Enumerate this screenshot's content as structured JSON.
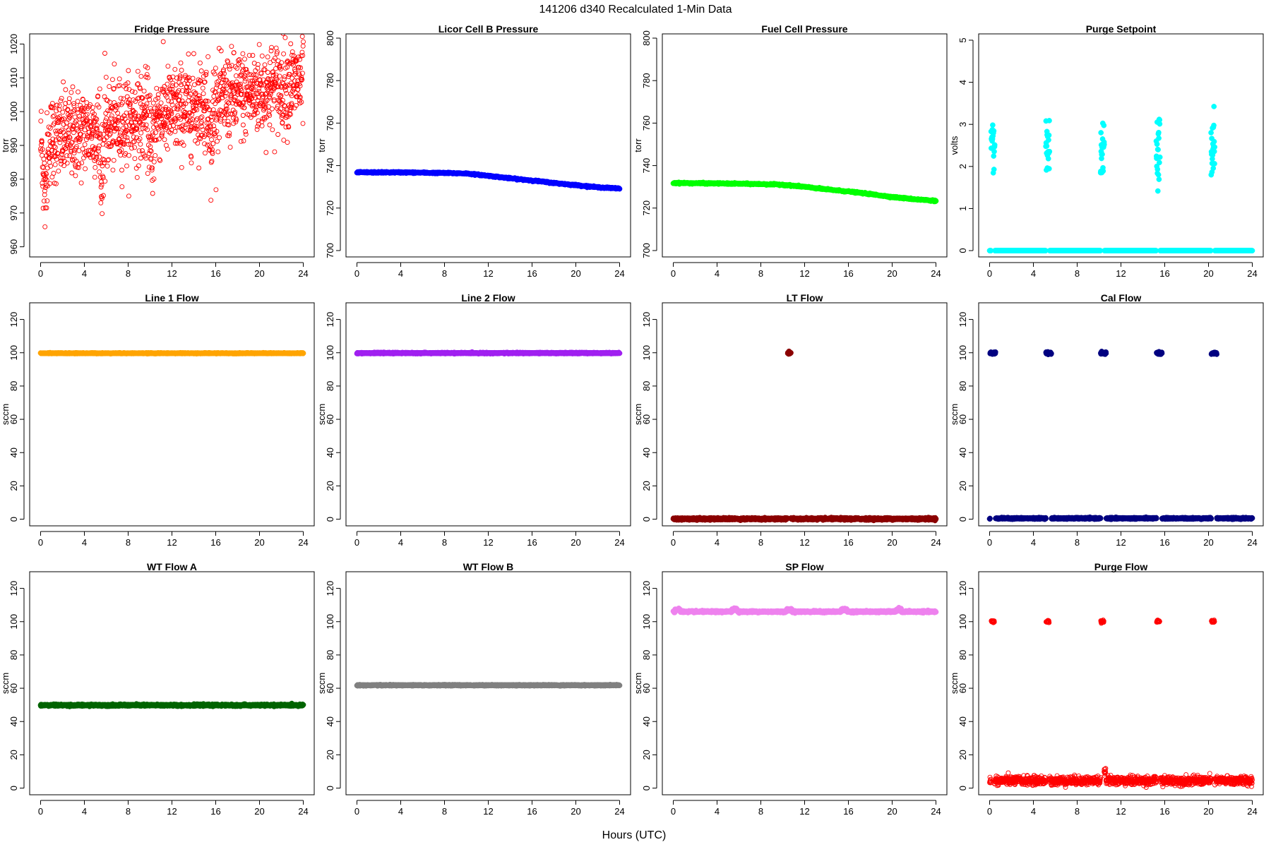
{
  "figure": {
    "title": "141206   d340   Recalculated 1-Min Data",
    "xlabel": "Hours (UTC)"
  },
  "chart_data": [
    {
      "type": "scatter",
      "title": "Fridge Pressure",
      "ylabel": "torr",
      "xlim": [
        -1,
        25
      ],
      "ylim": [
        957,
        1023
      ],
      "xticks": [
        0,
        4,
        8,
        12,
        16,
        20,
        24
      ],
      "yticks": [
        960,
        970,
        980,
        990,
        1000,
        1010,
        1020
      ],
      "series": [
        {
          "color": "#ff0000",
          "marker": "open-circle",
          "model": {
            "kind": "noisy-trend",
            "start": 991,
            "end": 1009,
            "noise": 6.5,
            "n": 1440,
            "dips": [
              [
                0.4,
                16
              ],
              [
                5.6,
                20
              ],
              [
                10.2,
                15
              ],
              [
                15.6,
                16
              ]
            ]
          }
        }
      ]
    },
    {
      "type": "scatter",
      "title": "Licor Cell B Pressure",
      "ylabel": "torr",
      "xlim": [
        -1,
        25
      ],
      "ylim": [
        697,
        802
      ],
      "xticks": [
        0,
        4,
        8,
        12,
        16,
        20,
        24
      ],
      "yticks": [
        700,
        720,
        740,
        760,
        780,
        800
      ],
      "series": [
        {
          "color": "#0000ff",
          "marker": "filled-circle",
          "points": [
            [
              0,
              736.8
            ],
            [
              4,
              736.8
            ],
            [
              8,
              736.5
            ],
            [
              10,
              736.3
            ],
            [
              12,
              735.2
            ],
            [
              14,
              734.0
            ],
            [
              16,
              733.0
            ],
            [
              18,
              731.8
            ],
            [
              20,
              730.8
            ],
            [
              22,
              729.8
            ],
            [
              24,
              729.2
            ]
          ]
        }
      ]
    },
    {
      "type": "scatter",
      "title": "Fuel Cell Pressure",
      "ylabel": "torr",
      "xlim": [
        -1,
        25
      ],
      "ylim": [
        697,
        802
      ],
      "xticks": [
        0,
        4,
        8,
        12,
        16,
        20,
        24
      ],
      "yticks": [
        700,
        720,
        740,
        760,
        780,
        800
      ],
      "series": [
        {
          "color": "#00ff00",
          "marker": "filled-circle",
          "points": [
            [
              0,
              731.8
            ],
            [
              4,
              731.6
            ],
            [
              8,
              731.3
            ],
            [
              10,
              731.0
            ],
            [
              12,
              730.0
            ],
            [
              14,
              728.8
            ],
            [
              16,
              727.8
            ],
            [
              18,
              726.6
            ],
            [
              20,
              725.2
            ],
            [
              22,
              724.2
            ],
            [
              24,
              723.4
            ]
          ]
        }
      ]
    },
    {
      "type": "scatter",
      "title": "Purge Setpoint",
      "ylabel": "volts",
      "xlim": [
        -1,
        25
      ],
      "ylim": [
        -0.15,
        5.15
      ],
      "xticks": [
        0,
        4,
        8,
        12,
        16,
        20,
        24
      ],
      "yticks": [
        0,
        1,
        2,
        3,
        4,
        5
      ],
      "series": [
        {
          "color": "#00ffff",
          "marker": "filled-circle",
          "model": {
            "kind": "baseline-with-bursts",
            "base": 0.0,
            "noise": 0.0,
            "n": 1440,
            "bursts": [
              [
                0.3,
                2.45
              ],
              [
                5.3,
                2.47
              ],
              [
                10.3,
                2.43
              ],
              [
                15.4,
                2.47
              ],
              [
                20.4,
                2.44
              ]
            ],
            "burst_width": 0.35
          }
        }
      ]
    },
    {
      "type": "scatter",
      "title": "Line 1 Flow",
      "ylabel": "sccm",
      "xlim": [
        -1,
        25
      ],
      "ylim": [
        -4,
        130
      ],
      "xticks": [
        0,
        4,
        8,
        12,
        16,
        20,
        24
      ],
      "yticks": [
        0,
        20,
        40,
        60,
        80,
        100,
        120
      ],
      "series": [
        {
          "color": "#ffa500",
          "marker": "filled-circle",
          "model": {
            "kind": "flat",
            "value": 99.7,
            "noise": 0.1,
            "n": 1440
          }
        }
      ]
    },
    {
      "type": "scatter",
      "title": "Line 2 Flow",
      "ylabel": "sccm",
      "xlim": [
        -1,
        25
      ],
      "ylim": [
        -4,
        130
      ],
      "xticks": [
        0,
        4,
        8,
        12,
        16,
        20,
        24
      ],
      "yticks": [
        0,
        20,
        40,
        60,
        80,
        100,
        120
      ],
      "series": [
        {
          "color": "#a020f0",
          "marker": "filled-circle",
          "model": {
            "kind": "flat",
            "value": 99.8,
            "noise": 0.15,
            "n": 1440
          }
        }
      ]
    },
    {
      "type": "scatter",
      "title": "LT Flow",
      "ylabel": "sccm",
      "xlim": [
        -1,
        25
      ],
      "ylim": [
        -4,
        130
      ],
      "xticks": [
        0,
        4,
        8,
        12,
        16,
        20,
        24
      ],
      "yticks": [
        0,
        20,
        40,
        60,
        80,
        100,
        120
      ],
      "series": [
        {
          "color": "#8b0000",
          "marker": "filled-circle",
          "model": {
            "kind": "baseline-with-bursts",
            "base": 0.2,
            "noise": 0.3,
            "n": 1440,
            "bursts": [
              [
                10.6,
                99.8
              ]
            ],
            "burst_width": 0.3
          }
        }
      ]
    },
    {
      "type": "scatter",
      "title": "Cal Flow",
      "ylabel": "sccm",
      "xlim": [
        -1,
        25
      ],
      "ylim": [
        -4,
        130
      ],
      "xticks": [
        0,
        4,
        8,
        12,
        16,
        20,
        24
      ],
      "yticks": [
        0,
        20,
        40,
        60,
        80,
        100,
        120
      ],
      "series": [
        {
          "color": "#000080",
          "marker": "filled-circle",
          "model": {
            "kind": "baseline-with-bursts",
            "base": 0.5,
            "noise": 0.2,
            "n": 1440,
            "bursts": [
              [
                0.3,
                99.8
              ],
              [
                5.4,
                99.8
              ],
              [
                10.4,
                99.8
              ],
              [
                15.5,
                99.8
              ],
              [
                20.5,
                99.8
              ]
            ],
            "burst_width": 0.5
          }
        }
      ]
    },
    {
      "type": "scatter",
      "title": "WT Flow A",
      "ylabel": "sccm",
      "xlim": [
        -1,
        25
      ],
      "ylim": [
        -4,
        130
      ],
      "xticks": [
        0,
        4,
        8,
        12,
        16,
        20,
        24
      ],
      "yticks": [
        0,
        20,
        40,
        60,
        80,
        100,
        120
      ],
      "series": [
        {
          "color": "#006400",
          "marker": "filled-circle",
          "model": {
            "kind": "flat",
            "value": 49.8,
            "noise": 0.25,
            "n": 1440
          }
        }
      ]
    },
    {
      "type": "scatter",
      "title": "WT Flow B",
      "ylabel": "sccm",
      "xlim": [
        -1,
        25
      ],
      "ylim": [
        -4,
        130
      ],
      "xticks": [
        0,
        4,
        8,
        12,
        16,
        20,
        24
      ],
      "yticks": [
        0,
        20,
        40,
        60,
        80,
        100,
        120
      ],
      "series": [
        {
          "color": "#808080",
          "marker": "filled-circle",
          "model": {
            "kind": "flat",
            "value": 61.8,
            "noise": 0.15,
            "n": 1440
          }
        }
      ]
    },
    {
      "type": "scatter",
      "title": "SP Flow",
      "ylabel": "sccm",
      "xlim": [
        -1,
        25
      ],
      "ylim": [
        -4,
        130
      ],
      "xticks": [
        0,
        4,
        8,
        12,
        16,
        20,
        24
      ],
      "yticks": [
        0,
        20,
        40,
        60,
        80,
        100,
        120
      ],
      "series": [
        {
          "color": "#ee82ee",
          "marker": "filled-circle",
          "model": {
            "kind": "baseline-with-bursts",
            "base": 106.0,
            "noise": 0.25,
            "n": 1440,
            "bursts": [
              [
                0.4,
                107.2
              ],
              [
                5.6,
                107.4
              ],
              [
                10.6,
                107.2
              ],
              [
                15.6,
                107.4
              ],
              [
                20.6,
                107.2
              ]
            ],
            "burst_width": 0.5
          }
        }
      ]
    },
    {
      "type": "scatter",
      "title": "Purge Flow",
      "ylabel": "sccm",
      "xlim": [
        -1,
        25
      ],
      "ylim": [
        -4,
        130
      ],
      "xticks": [
        0,
        4,
        8,
        12,
        16,
        20,
        24
      ],
      "yticks": [
        0,
        20,
        40,
        60,
        80,
        100,
        120
      ],
      "series": [
        {
          "color": "#ff0000",
          "marker": "open-circle",
          "model": {
            "kind": "baseline-with-bursts",
            "base": 4.5,
            "noise": 1.3,
            "n": 1440,
            "bursts": [
              [
                0.3,
                100.2
              ],
              [
                5.3,
                100.0
              ],
              [
                10.3,
                100.1
              ],
              [
                15.4,
                100.2
              ],
              [
                20.4,
                100.1
              ]
            ],
            "burst_width": 0.3,
            "spike": [
              10.5,
              10.5
            ]
          }
        }
      ]
    }
  ]
}
